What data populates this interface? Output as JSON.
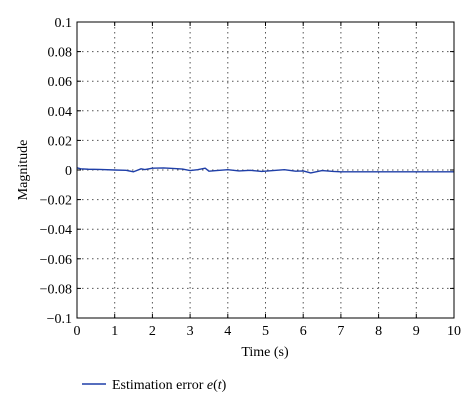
{
  "chart_data": {
    "type": "line",
    "xlabel": "Time (s)",
    "ylabel": "Magnitude",
    "xlim": [
      0,
      10
    ],
    "ylim": [
      -0.1,
      0.1
    ],
    "xticks": [
      0,
      1,
      2,
      3,
      4,
      5,
      6,
      7,
      8,
      9,
      10
    ],
    "yticks": [
      0.1,
      0.08,
      0.06,
      0.04,
      0.02,
      0,
      -0.02,
      -0.04,
      -0.06,
      -0.08,
      -0.1
    ],
    "xtick_labels": [
      "0",
      "1",
      "2",
      "3",
      "4",
      "5",
      "6",
      "7",
      "8",
      "9",
      "10"
    ],
    "ytick_labels": [
      "0.1",
      "0.08",
      "0.06",
      "0.04",
      "0.02",
      "0",
      "−0.02",
      "−0.04",
      "−0.06",
      "−0.08",
      "−0.1"
    ],
    "grid": true,
    "legend_position": "below",
    "series": [
      {
        "name": "Estimation error e(t)",
        "color": "#1f3fa8",
        "x": [
          0,
          0.1,
          0.3,
          0.6,
          1.0,
          1.3,
          1.5,
          1.7,
          1.8,
          2.0,
          2.3,
          2.6,
          2.8,
          3.0,
          3.2,
          3.4,
          3.5,
          3.7,
          4.0,
          4.3,
          4.6,
          4.9,
          5.2,
          5.5,
          5.8,
          6.0,
          6.2,
          6.5,
          6.8,
          7.0,
          8.0,
          9.0,
          10.0
        ],
        "y": [
          0.0015,
          0.0008,
          0.0005,
          0.0004,
          0.0,
          -0.0002,
          -0.0012,
          0.0008,
          0.0003,
          0.0012,
          0.0014,
          0.001,
          0.0006,
          -0.0004,
          0.0002,
          0.0012,
          -0.0008,
          -0.0004,
          0.0002,
          -0.0006,
          -0.0002,
          -0.001,
          -0.0004,
          0.0002,
          -0.0008,
          -0.0006,
          -0.002,
          -0.0004,
          -0.001,
          -0.0012,
          -0.0012,
          -0.0012,
          -0.0012
        ]
      }
    ]
  },
  "legend": {
    "label_prefix": "Estimation error ",
    "label_var": "e",
    "label_open": "(",
    "label_arg": "t",
    "label_close": ")"
  }
}
